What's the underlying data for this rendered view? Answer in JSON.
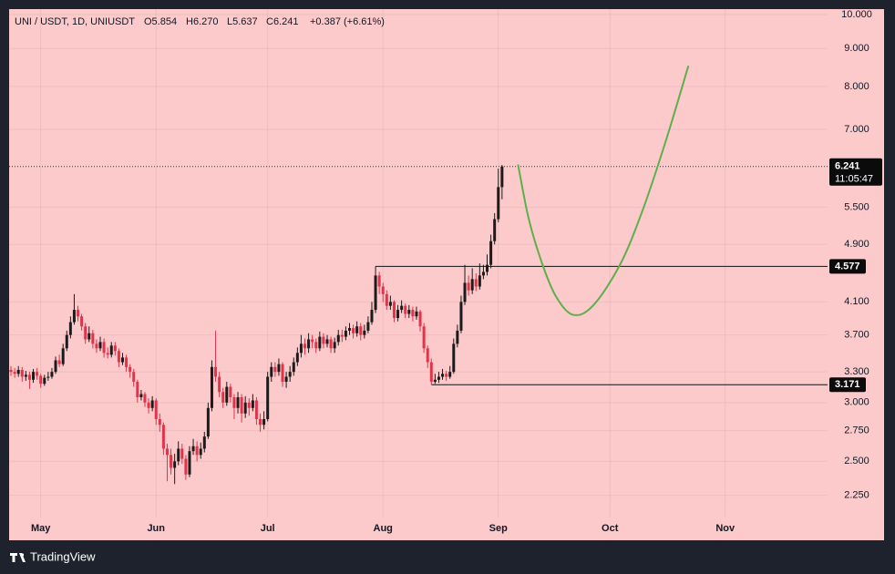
{
  "chart_data": {
    "type": "candlestick",
    "header": {
      "symbol": "UNI / USDT, 1D, UNIUSDT",
      "open": "O5.854",
      "high": "H6.270",
      "low": "L5.637",
      "close": "C6.241",
      "change": "+0.387 (+6.61%)"
    },
    "open": [
      3.32,
      3.3,
      3.28,
      3.32,
      3.25,
      3.27,
      3.22,
      3.3,
      3.26,
      3.18,
      3.24,
      3.25,
      3.3,
      3.42,
      3.38,
      3.55,
      3.7,
      3.85,
      4.0,
      3.92,
      3.8,
      3.65,
      3.72,
      3.6,
      3.55,
      3.62,
      3.5,
      3.48,
      3.58,
      3.52,
      3.4,
      3.45,
      3.35,
      3.3,
      3.2,
      3.05,
      3.08,
      3.0,
      2.95,
      3.02,
      2.85,
      2.8,
      2.6,
      2.55,
      2.45,
      2.5,
      2.6,
      2.52,
      2.4,
      2.58,
      2.62,
      2.55,
      2.6,
      2.7,
      2.95,
      3.35,
      3.25,
      3.1,
      3.0,
      3.15,
      3.05,
      2.95,
      3.05,
      2.9,
      3.0,
      2.95,
      3.02,
      2.85,
      2.8,
      2.85,
      3.25,
      3.35,
      3.3,
      3.38,
      3.2,
      3.25,
      3.3,
      3.4,
      3.5,
      3.6,
      3.55,
      3.65,
      3.62,
      3.55,
      3.68,
      3.6,
      3.65,
      3.55,
      3.62,
      3.7,
      3.68,
      3.75,
      3.78,
      3.72,
      3.8,
      3.7,
      3.75,
      3.85,
      4.0,
      4.45,
      4.3,
      4.2,
      4.05,
      4.1,
      3.9,
      4.0,
      4.05,
      3.95,
      4.0,
      3.92,
      3.98,
      3.8,
      3.55,
      3.4,
      3.2,
      3.22,
      3.25,
      3.28,
      3.25,
      3.3,
      3.6,
      3.75,
      4.1,
      4.35,
      4.25,
      4.4,
      4.3,
      4.45,
      4.5,
      4.6,
      4.95,
      5.3,
      5.854
    ],
    "high": [
      3.36,
      3.34,
      3.36,
      3.35,
      3.31,
      3.3,
      3.33,
      3.34,
      3.28,
      3.27,
      3.3,
      3.34,
      3.46,
      3.48,
      3.6,
      3.75,
      3.92,
      4.2,
      4.05,
      3.95,
      3.84,
      3.8,
      3.76,
      3.65,
      3.68,
      3.66,
      3.56,
      3.62,
      3.62,
      3.55,
      3.5,
      3.48,
      3.38,
      3.33,
      3.22,
      3.12,
      3.1,
      3.04,
      3.06,
      3.04,
      2.9,
      2.82,
      2.64,
      2.6,
      2.56,
      2.66,
      2.64,
      2.55,
      2.62,
      2.68,
      2.66,
      2.65,
      2.74,
      3.0,
      3.42,
      3.75,
      3.3,
      3.14,
      3.2,
      3.18,
      3.08,
      3.1,
      3.08,
      3.06,
      3.04,
      3.08,
      3.05,
      2.9,
      2.92,
      3.3,
      3.4,
      3.4,
      3.44,
      3.4,
      3.3,
      3.36,
      3.45,
      3.56,
      3.7,
      3.66,
      3.72,
      3.7,
      3.66,
      3.74,
      3.72,
      3.7,
      3.68,
      3.67,
      3.76,
      3.76,
      3.8,
      3.84,
      3.82,
      3.86,
      3.84,
      3.82,
      3.92,
      4.1,
      4.577,
      4.5,
      4.35,
      4.25,
      4.18,
      4.12,
      4.06,
      4.12,
      4.08,
      4.06,
      4.04,
      4.04,
      4.0,
      3.84,
      3.58,
      3.44,
      3.28,
      3.3,
      3.33,
      3.31,
      3.36,
      3.66,
      3.82,
      4.18,
      4.6,
      4.45,
      4.55,
      4.48,
      4.62,
      4.6,
      4.75,
      5.05,
      5.4,
      6.2,
      6.27
    ],
    "low": [
      3.26,
      3.24,
      3.25,
      3.2,
      3.21,
      3.13,
      3.19,
      3.22,
      3.14,
      3.16,
      3.21,
      3.23,
      3.28,
      3.35,
      3.36,
      3.52,
      3.66,
      3.82,
      3.86,
      3.75,
      3.6,
      3.62,
      3.55,
      3.5,
      3.52,
      3.45,
      3.44,
      3.45,
      3.47,
      3.35,
      3.37,
      3.3,
      3.24,
      3.15,
      3.0,
      3.02,
      2.96,
      2.9,
      2.92,
      2.8,
      2.74,
      2.55,
      2.35,
      2.4,
      2.33,
      2.47,
      2.48,
      2.36,
      2.38,
      2.55,
      2.5,
      2.52,
      2.57,
      2.68,
      2.92,
      3.2,
      3.05,
      2.95,
      2.97,
      3.0,
      2.85,
      2.9,
      2.82,
      2.86,
      2.88,
      2.92,
      2.8,
      2.74,
      2.76,
      2.83,
      3.2,
      3.25,
      3.26,
      3.15,
      3.14,
      3.2,
      3.26,
      3.36,
      3.45,
      3.48,
      3.5,
      3.55,
      3.5,
      3.52,
      3.55,
      3.56,
      3.5,
      3.5,
      3.58,
      3.62,
      3.64,
      3.7,
      3.66,
      3.68,
      3.64,
      3.66,
      3.72,
      3.82,
      3.96,
      4.2,
      4.1,
      4.0,
      4.0,
      3.85,
      3.86,
      3.96,
      3.9,
      3.9,
      3.86,
      3.88,
      3.74,
      3.5,
      3.34,
      3.171,
      3.18,
      3.19,
      3.22,
      3.21,
      3.23,
      3.28,
      3.56,
      3.72,
      4.06,
      4.18,
      4.2,
      4.24,
      4.26,
      4.4,
      4.45,
      4.55,
      4.9,
      5.25,
      5.637
    ],
    "close": [
      3.3,
      3.28,
      3.32,
      3.25,
      3.27,
      3.22,
      3.3,
      3.26,
      3.18,
      3.24,
      3.25,
      3.3,
      3.42,
      3.38,
      3.55,
      3.7,
      3.85,
      4.0,
      3.92,
      3.8,
      3.65,
      3.72,
      3.6,
      3.55,
      3.62,
      3.5,
      3.48,
      3.58,
      3.52,
      3.4,
      3.45,
      3.35,
      3.3,
      3.2,
      3.05,
      3.08,
      3.0,
      2.95,
      3.02,
      2.85,
      2.8,
      2.6,
      2.55,
      2.45,
      2.5,
      2.6,
      2.52,
      2.4,
      2.58,
      2.62,
      2.55,
      2.6,
      2.7,
      2.95,
      3.35,
      3.25,
      3.1,
      3.0,
      3.15,
      3.05,
      2.95,
      3.05,
      2.9,
      3.0,
      2.95,
      3.02,
      2.85,
      2.8,
      2.85,
      3.25,
      3.35,
      3.3,
      3.38,
      3.2,
      3.25,
      3.3,
      3.4,
      3.5,
      3.6,
      3.55,
      3.65,
      3.62,
      3.55,
      3.68,
      3.6,
      3.65,
      3.55,
      3.62,
      3.7,
      3.68,
      3.75,
      3.78,
      3.72,
      3.8,
      3.7,
      3.75,
      3.85,
      4.0,
      4.45,
      4.3,
      4.2,
      4.05,
      4.1,
      3.9,
      4.0,
      4.05,
      3.95,
      4.0,
      3.92,
      3.98,
      3.8,
      3.55,
      3.4,
      3.2,
      3.22,
      3.25,
      3.28,
      3.25,
      3.3,
      3.6,
      3.75,
      4.1,
      4.35,
      4.25,
      4.4,
      4.3,
      4.45,
      4.5,
      4.6,
      4.95,
      5.3,
      5.854,
      6.241
    ],
    "up_color": "#1b1b1b",
    "down_color": "#e2334a",
    "countdown": "11:05:47",
    "levels": [
      {
        "value": 4.577,
        "start": 98
      },
      {
        "value": 3.171,
        "start": 113
      }
    ],
    "projection": {
      "color": "#5fae4c",
      "x": [
        136.3,
        139.2,
        142.9,
        146.5,
        151,
        156.4,
        163.7,
        169.8,
        176,
        182.1
      ],
      "values": [
        6.28,
        5.3,
        4.6,
        4.17,
        3.94,
        4.05,
        4.6,
        5.45,
        6.75,
        8.53
      ]
    },
    "log_scale": true,
    "grid": true,
    "xlim": [
      -0.5,
      219.5
    ],
    "xticks": [
      {
        "value": 8,
        "label": "May"
      },
      {
        "value": 39,
        "label": "Jun"
      },
      {
        "value": 69,
        "label": "Jul"
      },
      {
        "value": 100,
        "label": "Aug"
      },
      {
        "value": 131,
        "label": "Sep"
      },
      {
        "value": 161,
        "label": "Oct"
      },
      {
        "value": 192,
        "label": "Nov"
      }
    ],
    "ylim": [
      2.1,
      10.17
    ],
    "yticks": [
      {
        "value": 2.25,
        "label": "2.250"
      },
      {
        "value": 2.5,
        "label": "2.500"
      },
      {
        "value": 2.75,
        "label": "2.750"
      },
      {
        "value": 3,
        "label": "3.000"
      },
      {
        "value": 3.3,
        "label": "3.300"
      },
      {
        "value": 3.7,
        "label": "3.700"
      },
      {
        "value": 4.1,
        "label": "4.100"
      },
      {
        "value": 4.9,
        "label": "4.900"
      },
      {
        "value": 5.5,
        "label": "5.500"
      },
      {
        "value": 7,
        "label": "7.000"
      },
      {
        "value": 8,
        "label": "8.000"
      },
      {
        "value": 9,
        "label": "9.000"
      },
      {
        "value": 10,
        "label": "10.000"
      }
    ]
  },
  "footer": {
    "brand": "TradingView"
  }
}
